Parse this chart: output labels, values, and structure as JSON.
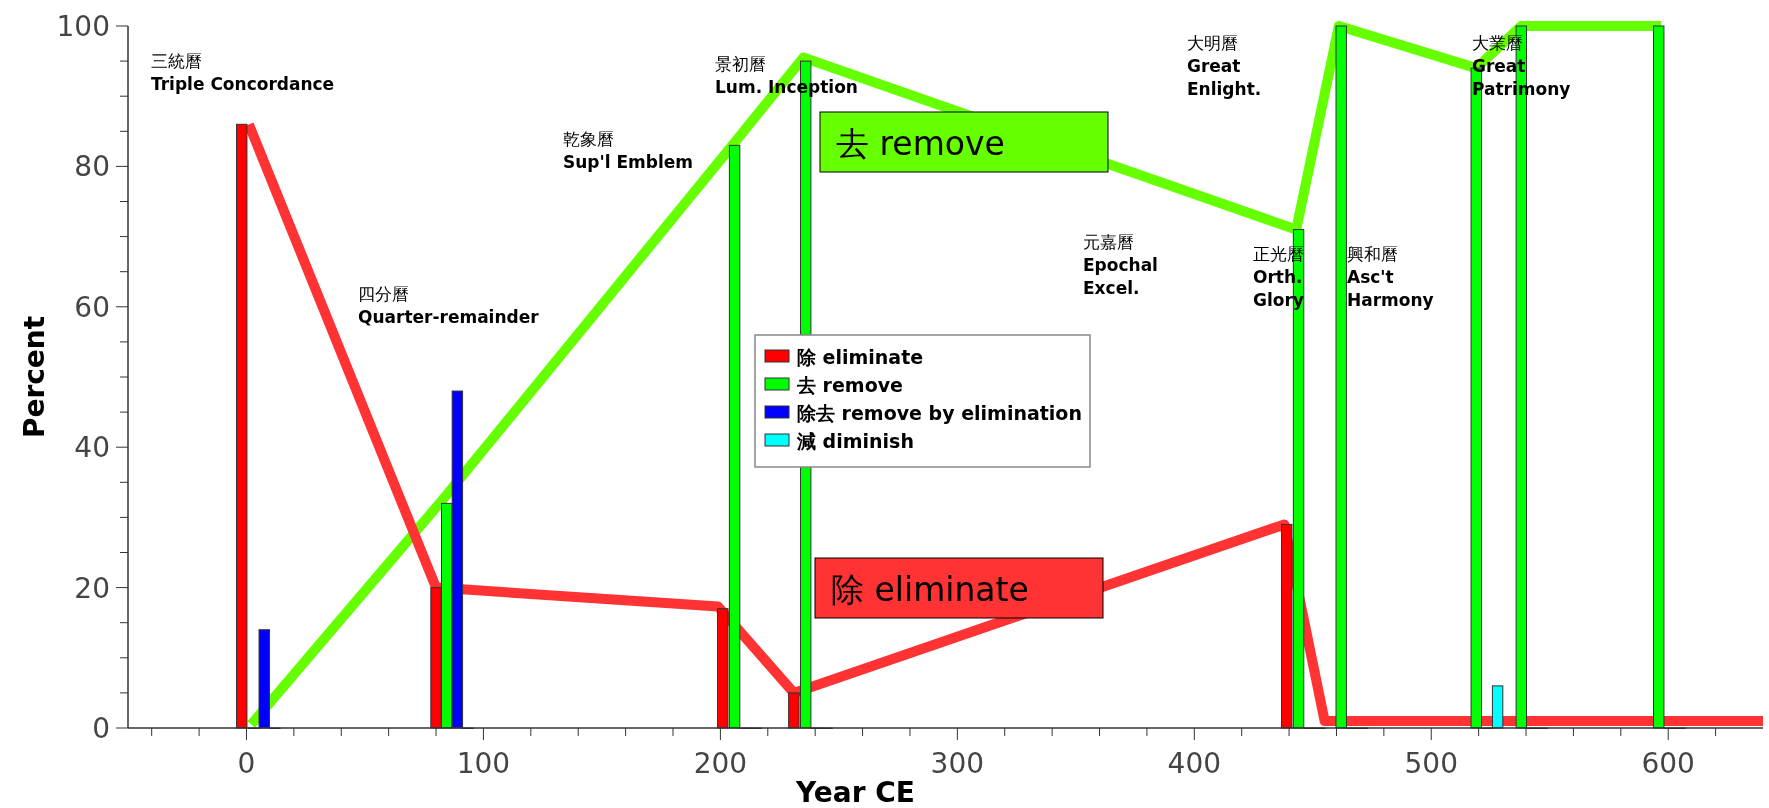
{
  "chart_data": {
    "type": "bar",
    "xlabel": "Year CE",
    "ylabel": "Percent",
    "xlim": [
      -50,
      640
    ],
    "ylim": [
      0,
      100
    ],
    "xticks": [
      {
        "value": -40,
        "label": null
      },
      {
        "value": -20,
        "label": null
      },
      0,
      {
        "value": 20,
        "label": null
      },
      {
        "value": 40,
        "label": null
      },
      {
        "value": 60,
        "label": null
      },
      {
        "value": 80,
        "label": null
      },
      100,
      {
        "value": 120,
        "label": null
      },
      {
        "value": 140,
        "label": null
      },
      {
        "value": 160,
        "label": null
      },
      {
        "value": 180,
        "label": null
      },
      200,
      {
        "value": 220,
        "label": null
      },
      {
        "value": 240,
        "label": null
      },
      {
        "value": 260,
        "label": null
      },
      {
        "value": 280,
        "label": null
      },
      300,
      {
        "value": 320,
        "label": null
      },
      {
        "value": 340,
        "label": null
      },
      {
        "value": 360,
        "label": null
      },
      {
        "value": 380,
        "label": null
      },
      400,
      {
        "value": 420,
        "label": null
      },
      {
        "value": 440,
        "label": null
      },
      {
        "value": 460,
        "label": null
      },
      {
        "value": 480,
        "label": null
      },
      500,
      {
        "value": 520,
        "label": null
      },
      {
        "value": 540,
        "label": null
      },
      {
        "value": 560,
        "label": null
      },
      {
        "value": 580,
        "label": null
      },
      600,
      {
        "value": 620,
        "label": null
      }
    ],
    "yticks": [
      0,
      {
        "value": 5,
        "label": null
      },
      {
        "value": 10,
        "label": null
      },
      {
        "value": 15,
        "label": null
      },
      20,
      {
        "value": 25,
        "label": null
      },
      {
        "value": 30,
        "label": null
      },
      {
        "value": 35,
        "label": null
      },
      40,
      {
        "value": 45,
        "label": null
      },
      {
        "value": 50,
        "label": null
      },
      {
        "value": 55,
        "label": null
      },
      60,
      {
        "value": 65,
        "label": null
      },
      {
        "value": 70,
        "label": null
      },
      {
        "value": 75,
        "label": null
      },
      80,
      {
        "value": 85,
        "label": null
      },
      {
        "value": 90,
        "label": null
      },
      {
        "value": 95,
        "label": null
      },
      100
    ],
    "grid": false,
    "legend": "center",
    "series": [
      {
        "name": "除 eliminate",
        "color": "#ff0000",
        "x": [
          -2,
          80,
          201,
          231,
          439
        ],
        "values": [
          86,
          20,
          17,
          5,
          29
        ]
      },
      {
        "name": "去 remove",
        "color": "#00ff00",
        "x": [
          3,
          84.5,
          206,
          236,
          444,
          462,
          519,
          538,
          596
        ],
        "values": [
          0,
          32,
          83,
          95,
          71,
          100,
          94,
          100,
          100
        ]
      },
      {
        "name": "除去 remove by elimination",
        "color": "#0000ff",
        "x": [
          7.5,
          89,
          210.5,
          240.5,
          448.5,
          466.5,
          523.5,
          542.5,
          600.5
        ],
        "values": [
          14,
          48,
          0,
          0,
          0,
          0,
          0,
          0,
          0
        ]
      },
      {
        "name": "減 diminish",
        "color": "#00ffff",
        "x": [
          12,
          93.5,
          215,
          245,
          453,
          471,
          528,
          547,
          605
        ],
        "values": [
          0,
          0,
          0,
          0,
          0,
          0,
          6,
          0,
          0
        ]
      },
      {
        "type": "line",
        "name": "去 remove",
        "color": "#66ff00",
        "x": [
          2,
          84,
          205,
          235,
          443,
          461,
          519,
          538,
          597
        ],
        "values": [
          0.5,
          33,
          83,
          95.5,
          71,
          100,
          94,
          100,
          100
        ]
      },
      {
        "type": "line",
        "name": "除 eliminate",
        "color": "#ff3333",
        "x": [
          1,
          80,
          199,
          231,
          438,
          455,
          640
        ],
        "values": [
          86,
          20,
          17.3,
          5,
          29,
          1,
          1
        ]
      }
    ],
    "annotations": [
      "三統曆\nTriple Concordance",
      "四分曆\nQuarter-remainder",
      "乾象曆\nSup'l Emblem",
      "景初曆\nLum. Inception",
      "元嘉曆\nEpochal\nExcel.",
      "大明曆\nGreat\nEnlight.",
      "正光曆\nOrth.\nGlory",
      "興和曆\nAsc't\nHarmony",
      "大業曆\nGreat\nPatrimony"
    ]
  }
}
